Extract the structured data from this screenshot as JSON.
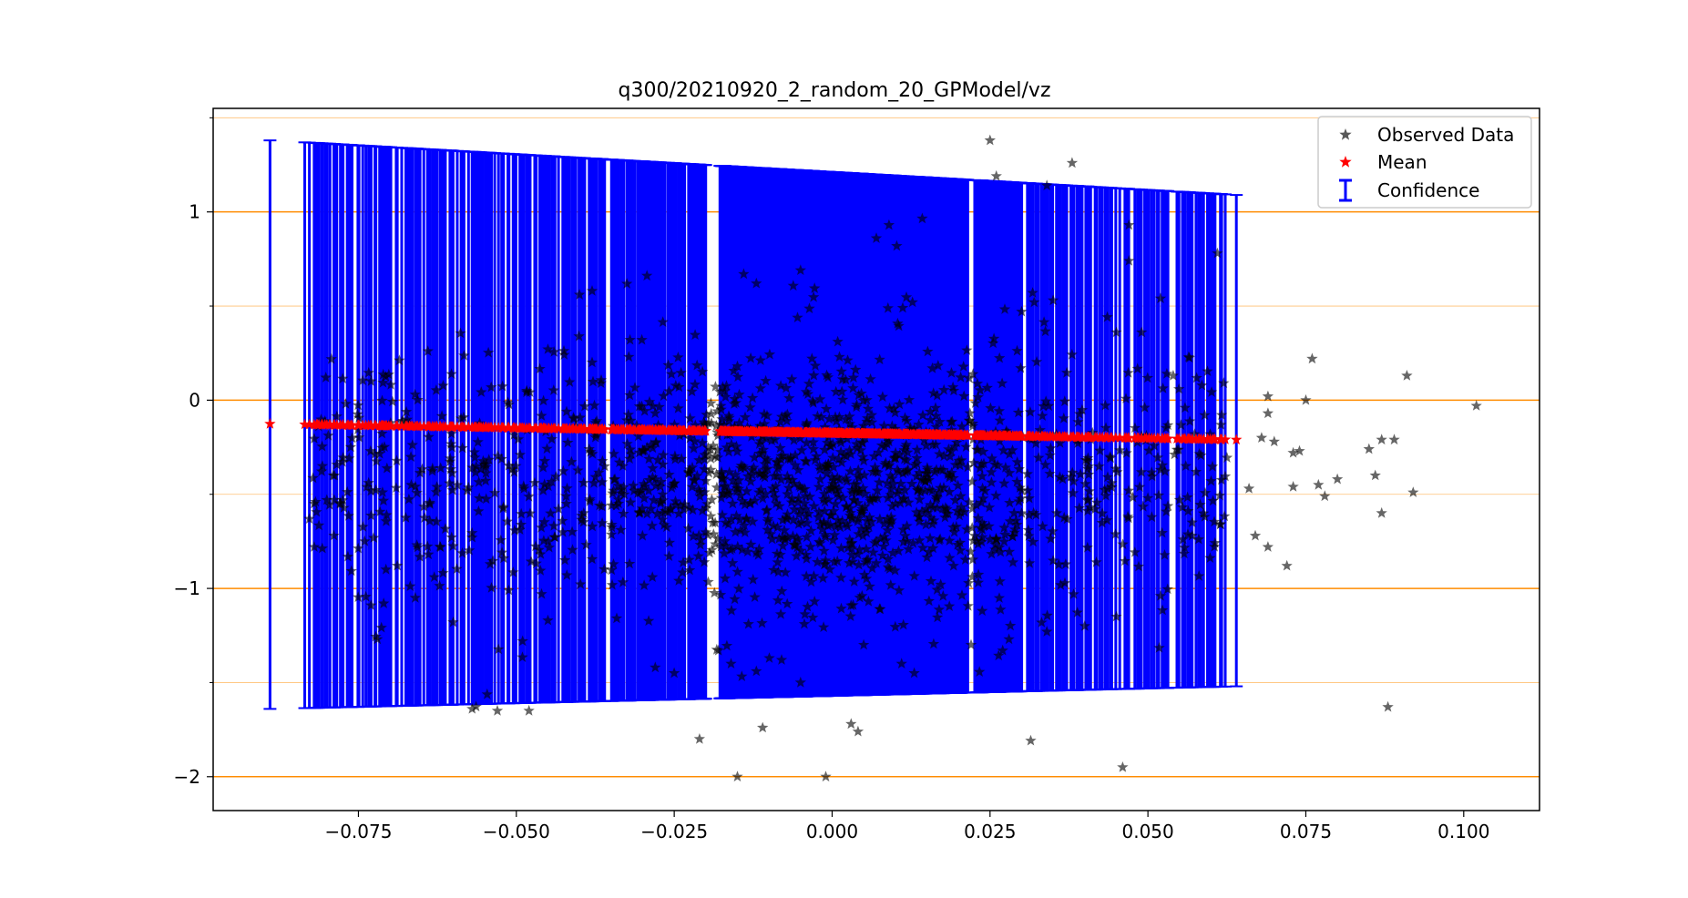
{
  "chart_data": {
    "type": "scatter",
    "title": "q300/20210920_2_random_20_GPModel/vz",
    "xlabel": "",
    "ylabel": "",
    "xlim": [
      -0.098,
      0.112
    ],
    "ylim": [
      -2.18,
      1.55
    ],
    "x_ticks": [
      -0.075,
      -0.05,
      -0.025,
      0.0,
      0.025,
      0.05,
      0.075,
      0.1
    ],
    "x_tick_labels": [
      "−0.075",
      "−0.050",
      "−0.025",
      "0.000",
      "0.025",
      "0.050",
      "0.075",
      "0.100"
    ],
    "y_ticks": [
      1,
      0,
      -1,
      -2
    ],
    "y_tick_labels": [
      "1",
      "0",
      "−1",
      "−2"
    ],
    "y_minor_ticks": [
      1.5,
      0.5,
      -0.5,
      -1.5
    ],
    "grid": {
      "major_y": [
        1,
        0,
        -1,
        -2
      ],
      "minor_y": [
        1.5,
        0.5,
        -0.5,
        -1.5
      ],
      "color": "#ff8c00"
    },
    "legend": {
      "position": "top-right",
      "entries": [
        "Observed Data",
        "Mean",
        "Confidence"
      ]
    },
    "colors": {
      "observed": "#000000",
      "mean": "#ff0000",
      "confidence": "#0000ff",
      "grid": "#ff8c00"
    },
    "series": [
      {
        "name": "Observed Data",
        "marker": "star",
        "alpha": 0.6,
        "points": [
          [
            0.025,
            1.38
          ],
          [
            0.026,
            1.19
          ],
          [
            0.038,
            1.26
          ],
          [
            0.034,
            1.14
          ],
          [
            0.007,
            0.86
          ],
          [
            0.009,
            0.93
          ],
          [
            0.047,
            0.93
          ],
          [
            0.047,
            0.74
          ],
          [
            0.061,
            0.78
          ],
          [
            0.052,
            0.54
          ],
          [
            -0.038,
            0.58
          ],
          [
            -0.04,
            0.56
          ],
          [
            -0.014,
            0.67
          ],
          [
            -0.012,
            0.62
          ],
          [
            -0.005,
            0.69
          ],
          [
            -0.064,
            0.26
          ],
          [
            -0.045,
            0.27
          ],
          [
            -0.032,
            0.32
          ],
          [
            -0.038,
            0.2
          ],
          [
            -0.015,
            0.18
          ],
          [
            0.045,
            0.36
          ],
          [
            0.049,
            0.36
          ],
          [
            0.03,
            0.47
          ],
          [
            0.032,
            0.52
          ],
          [
            0.035,
            0.53
          ],
          [
            0.053,
            0.14
          ],
          [
            0.054,
            0.13
          ],
          [
            0.062,
            0.09
          ],
          [
            0.069,
            0.02
          ],
          [
            0.075,
            0.0
          ],
          [
            0.076,
            0.22
          ],
          [
            0.091,
            0.13
          ],
          [
            0.102,
            -0.03
          ],
          [
            0.069,
            -0.07
          ],
          [
            0.059,
            -0.08
          ],
          [
            0.066,
            -0.47
          ],
          [
            0.067,
            -0.72
          ],
          [
            0.069,
            -0.78
          ],
          [
            0.072,
            -0.88
          ],
          [
            0.073,
            -0.28
          ],
          [
            0.074,
            -0.27
          ],
          [
            0.077,
            -0.45
          ],
          [
            0.078,
            -0.51
          ],
          [
            0.08,
            -0.42
          ],
          [
            0.085,
            -0.26
          ],
          [
            0.086,
            -0.4
          ],
          [
            0.087,
            -0.6
          ],
          [
            0.087,
            -0.21
          ],
          [
            0.089,
            -0.21
          ],
          [
            0.092,
            -0.49
          ],
          [
            0.088,
            -1.63
          ],
          [
            0.068,
            -0.2
          ],
          [
            0.07,
            -0.22
          ],
          [
            0.073,
            -0.46
          ],
          [
            0.046,
            -1.95
          ],
          [
            -0.015,
            -2.0
          ],
          [
            -0.001,
            -2.0
          ],
          [
            -0.021,
            -1.8
          ],
          [
            -0.011,
            -1.74
          ],
          [
            0.003,
            -1.72
          ],
          [
            -0.057,
            -1.64
          ],
          [
            -0.053,
            -1.65
          ],
          [
            -0.048,
            -1.65
          ],
          [
            -0.082,
            -0.78
          ],
          [
            -0.082,
            -0.55
          ],
          [
            -0.079,
            -0.4
          ],
          [
            -0.077,
            -0.02
          ],
          [
            -0.073,
            0.1
          ],
          [
            -0.074,
            -0.75
          ],
          [
            -0.073,
            -1.09
          ],
          [
            -0.072,
            -1.27
          ],
          [
            -0.071,
            -1.08
          ],
          [
            -0.066,
            -1.05
          ],
          [
            -0.06,
            -1.18
          ],
          [
            -0.057,
            -0.73
          ],
          [
            -0.052,
            -0.84
          ],
          [
            -0.046,
            -1.03
          ],
          [
            -0.045,
            -1.17
          ],
          [
            -0.049,
            -1.28
          ],
          [
            -0.042,
            -0.93
          ],
          [
            -0.028,
            -1.42
          ],
          [
            -0.025,
            -1.45
          ],
          [
            -0.018,
            -1.33
          ],
          [
            -0.016,
            -1.4
          ],
          [
            -0.012,
            -1.44
          ],
          [
            -0.008,
            -1.38
          ],
          [
            -0.005,
            -1.5
          ],
          [
            0.005,
            -1.3
          ],
          [
            0.011,
            -1.4
          ],
          [
            0.013,
            -1.45
          ],
          [
            0.022,
            -1.3
          ],
          [
            0.028,
            -1.27
          ],
          [
            0.034,
            -1.23
          ],
          [
            0.04,
            -1.2
          ],
          [
            0.045,
            -1.15
          ],
          [
            0.052,
            -1.04
          ],
          [
            0.057,
            -0.72
          ],
          [
            0.057,
            -0.65
          ],
          [
            0.059,
            -0.62
          ],
          [
            0.06,
            -0.43
          ],
          [
            0.056,
            -0.35
          ],
          [
            0.055,
            -0.53
          ],
          [
            0.052,
            -0.37
          ],
          [
            0.05,
            -0.52
          ],
          [
            0.049,
            -0.19
          ]
        ],
        "dense_cloud": {
          "x_range": [
            -0.083,
            0.063
          ],
          "y_center": -0.42,
          "y_spread": 0.32,
          "density_peak_x": 0.0,
          "count": 1600
        }
      },
      {
        "name": "Mean",
        "marker": "star",
        "slope": -0.55,
        "intercept": -0.175,
        "x_range": [
          -0.089,
          0.064
        ]
      },
      {
        "name": "Confidence",
        "type": "errorbar",
        "upper_at_x_min": 1.38,
        "upper_at_x_max": 1.09,
        "lower_at_x_min": -1.64,
        "lower_at_x_max": -1.52,
        "x_range": [
          -0.089,
          0.064
        ],
        "gaps": [
          [
            -0.02,
            -0.018
          ],
          [
            0.0215,
            0.0225
          ]
        ]
      }
    ]
  }
}
